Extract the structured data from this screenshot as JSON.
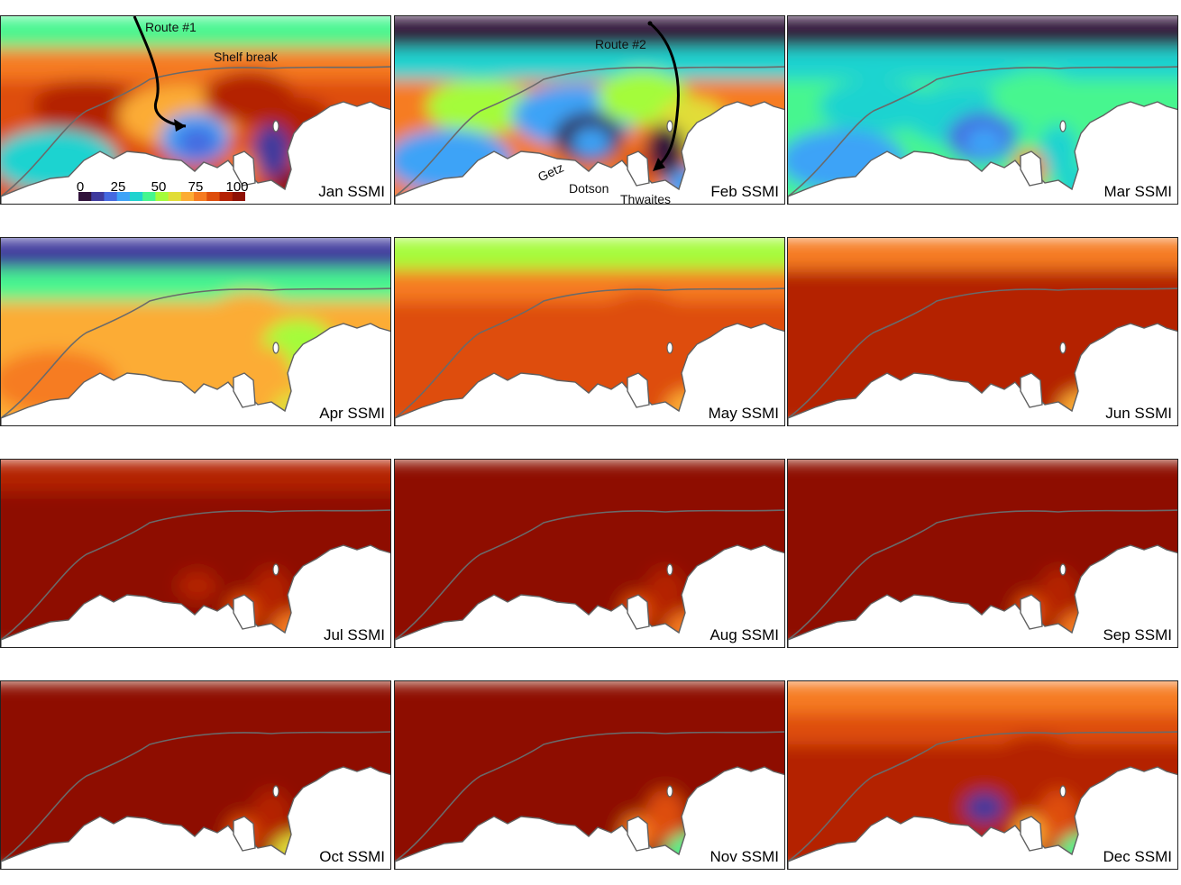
{
  "colors": {
    "c0": "#30123b",
    "c1": "#3f3a9d",
    "c2": "#4569e0",
    "c3": "#3ea3f7",
    "c4": "#1fd3d0",
    "c5": "#46f68f",
    "c6": "#a4fc3b",
    "c7": "#e1dd37",
    "c8": "#fcac34",
    "c9": "#f67b20",
    "c10": "#de4d0c",
    "c11": "#b42205",
    "c12": "#8e1004",
    "land": "#ffffff",
    "coast": "#606060",
    "shelf": "#6a6a6a",
    "route": "#000000"
  },
  "panels": [
    {
      "label": "Jan SSMI",
      "level": [
        5,
        9,
        10,
        11,
        4,
        8,
        11,
        11,
        3,
        2,
        1,
        9,
        12
      ]
    },
    {
      "label": "Feb SSMI",
      "level": [
        0,
        4,
        9,
        6,
        3,
        3,
        6,
        7,
        0,
        3,
        0,
        10,
        3
      ]
    },
    {
      "label": "Mar SSMI",
      "level": [
        0,
        4,
        5,
        4,
        3,
        4,
        5,
        5,
        2,
        3,
        4,
        9,
        4
      ]
    },
    {
      "label": "Apr SSMI",
      "level": [
        1,
        5,
        8,
        8,
        9,
        8,
        8,
        6,
        8,
        8,
        8,
        8,
        7
      ]
    },
    {
      "label": "May SSMI",
      "level": [
        6,
        9,
        10,
        10,
        10,
        10,
        10,
        10,
        10,
        10,
        10,
        10,
        8
      ]
    },
    {
      "label": "Jun SSMI",
      "level": [
        9,
        11,
        11,
        11,
        11,
        11,
        11,
        11,
        11,
        11,
        11,
        11,
        8
      ]
    },
    {
      "label": "Jul SSMI",
      "level": [
        11,
        12,
        12,
        12,
        12,
        12,
        12,
        12,
        12,
        11,
        11,
        10,
        9
      ]
    },
    {
      "label": "Aug SSMI",
      "level": [
        12,
        12,
        12,
        12,
        12,
        12,
        12,
        12,
        12,
        12,
        11,
        10,
        9
      ]
    },
    {
      "label": "Sep SSMI",
      "level": [
        12,
        12,
        12,
        12,
        12,
        12,
        12,
        12,
        12,
        12,
        11,
        10,
        9
      ]
    },
    {
      "label": "Oct SSMI",
      "level": [
        12,
        12,
        12,
        12,
        12,
        12,
        12,
        12,
        12,
        12,
        11,
        10,
        7
      ]
    },
    {
      "label": "Nov SSMI",
      "level": [
        12,
        12,
        12,
        12,
        12,
        12,
        12,
        12,
        12,
        12,
        10,
        9,
        5
      ]
    },
    {
      "label": "Dec SSMI",
      "level": [
        9,
        10,
        11,
        11,
        11,
        11,
        11,
        11,
        11,
        1,
        10,
        8,
        5
      ]
    }
  ],
  "annotations": {
    "route1": "Route #1",
    "route2": "Route #2",
    "shelf_break": "Shelf break",
    "getz": "Getz",
    "dotson": "Dotson",
    "thwaites": "Thwaites"
  },
  "colorbar": {
    "ticks": [
      "0",
      "25",
      "50",
      "75",
      "100"
    ]
  }
}
